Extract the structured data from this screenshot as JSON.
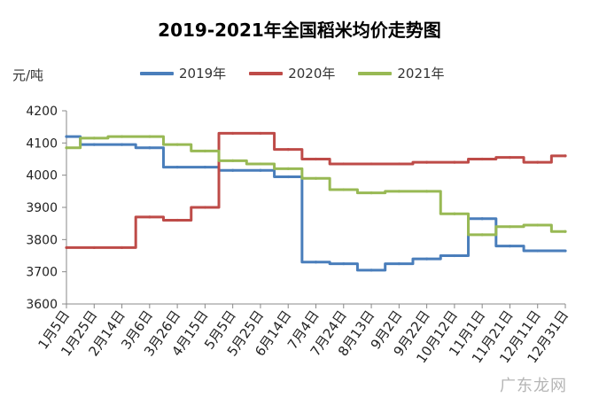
{
  "chart_data": {
    "type": "line",
    "title": "2019-2021年全国稻米均价走势图",
    "ylabel": "元/吨",
    "xlabel": "",
    "ylim": [
      3600,
      4200
    ],
    "yticks": [
      3600,
      3700,
      3800,
      3900,
      4000,
      4100,
      4200
    ],
    "grid": false,
    "legend_position": "top",
    "categories": [
      "1月5日",
      "1月25日",
      "2月14日",
      "3月6日",
      "3月26日",
      "4月15日",
      "5月5日",
      "5月25日",
      "6月14日",
      "7月4日",
      "7月24日",
      "8月13日",
      "9月2日",
      "9月22日",
      "10月12日",
      "11月1日",
      "11月21日",
      "12月11日",
      "12月31日"
    ],
    "series": [
      {
        "name": "2019年",
        "color": "#4a7ebb",
        "values": [
          4120,
          4095,
          4095,
          4085,
          4025,
          4025,
          4015,
          4015,
          3995,
          3730,
          3725,
          3705,
          3725,
          3740,
          3750,
          3865,
          3780,
          3765,
          3765
        ]
      },
      {
        "name": "2020年",
        "color": "#be4b48",
        "values": [
          3775,
          3775,
          3775,
          3870,
          3860,
          3900,
          4130,
          4130,
          4080,
          4050,
          4035,
          4035,
          4035,
          4040,
          4040,
          4050,
          4055,
          4040,
          4060
        ]
      },
      {
        "name": "2021年",
        "color": "#98b954",
        "values": [
          4085,
          4115,
          4120,
          4120,
          4095,
          4075,
          4045,
          4035,
          4020,
          3990,
          3955,
          3945,
          3950,
          3950,
          3880,
          3815,
          3840,
          3845,
          3825
        ]
      }
    ]
  },
  "watermark": "广东龙网"
}
